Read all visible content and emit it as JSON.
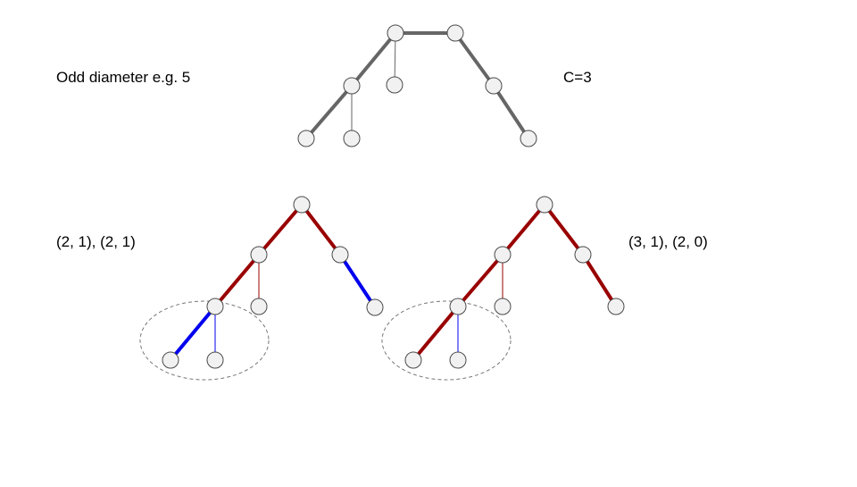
{
  "labels": {
    "top_left": "Odd diameter e.g. 5",
    "top_right": "C=3",
    "bottom_left": "(2, 1), (2, 1)",
    "bottom_right": "(3, 1), (2, 0)"
  },
  "colors": {
    "node_fill": "#f1f1f1",
    "node_stroke": "#4a4a4a",
    "gray_edge": "#666666",
    "red_edge": "#990000",
    "blue_edge": "#0000ee",
    "ellipse_stroke": "#777777"
  }
}
